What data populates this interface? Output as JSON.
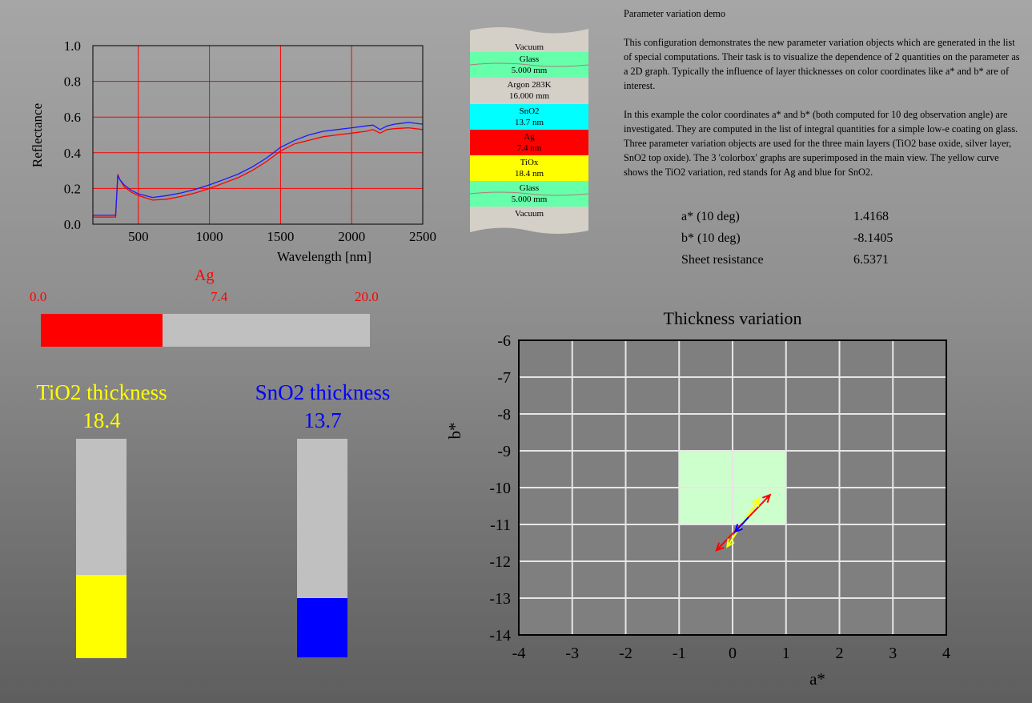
{
  "colors": {
    "reflectance_red": "#ff0000",
    "reflectance_blue": "#1a1aff",
    "grid_red": "#ff0000",
    "ag": "#ff0000",
    "tio2": "#ffff00",
    "sno2": "#0000ff",
    "glass": "#66ffaa",
    "sno2_layer": "#00ffff",
    "tiox_layer": "#ffff00",
    "plot_region": "#ccffcc"
  },
  "reflectance_chart": {
    "ylabel": "Reflectance",
    "xlabel": "Wavelength [nm]",
    "x_ticks": [
      "500",
      "1000",
      "1500",
      "2000",
      "2500"
    ],
    "y_ticks": [
      "0.0",
      "0.2",
      "0.4",
      "0.6",
      "0.8",
      "1.0"
    ]
  },
  "layer_stack": [
    {
      "name": "Vacuum",
      "thickness": "",
      "color": "#d4d0c8"
    },
    {
      "name": "Glass",
      "thickness": "5.000 mm",
      "color": "#66ffaa"
    },
    {
      "name": "Argon 283K",
      "thickness": "16.000 mm",
      "color": "#d4d0c8"
    },
    {
      "name": "SnO2",
      "thickness": "13.7 nm",
      "color": "#00ffff"
    },
    {
      "name": "Ag",
      "thickness": "7.4 nm",
      "color": "#ff0000"
    },
    {
      "name": "TiOx",
      "thickness": "18.4 nm",
      "color": "#ffff00"
    },
    {
      "name": "Glass",
      "thickness": "5.000 mm",
      "color": "#66ffaa"
    },
    {
      "name": "Vacuum",
      "thickness": "",
      "color": "#d4d0c8"
    }
  ],
  "description": {
    "title": "Parameter variation demo",
    "p1": "This configuration demonstrates the new parameter variation objects which are generated in the list of special computations. Their task is to visualize the dependence of 2 quantities on the parameter as a 2D graph. Typically the influence of layer thicknesses on color coordinates like a* and b* are of interest.",
    "p2": "In this example the color coordinates a* and b* (both computed for 10 deg observation angle) are investigated. They are computed in the list of integral quantities for a simple low-e coating on glass. Three parameter variation objects are used for the three main layers (TiO2 base oxide, silver layer, SnO2 top oxide). The 3 'colorbox' graphs are superimposed in the main view. The yellow curve shows the TiO2 variation, red stands for Ag and blue for SnO2."
  },
  "results": [
    {
      "name": "a* (10 deg)",
      "value": "1.4168"
    },
    {
      "name": "b* (10 deg)",
      "value": "-8.1405"
    },
    {
      "name": "Sheet resistance",
      "value": "6.5371"
    }
  ],
  "ag_slider": {
    "title": "Ag",
    "min_label": "0.0",
    "value_label": "7.4",
    "max_label": "20.0",
    "value": 7.4,
    "min": 0,
    "max": 20
  },
  "tio2": {
    "title": "TiO2 thickness",
    "value_label": "18.4",
    "fraction": 0.38
  },
  "sno2": {
    "title": "SnO2 thickness",
    "value_label": "13.7",
    "fraction": 0.27
  },
  "chart_data": [
    {
      "type": "line",
      "xlabel": "Wavelength [nm]",
      "ylabel": "Reflectance",
      "xlim": [
        180,
        2500
      ],
      "ylim": [
        0,
        1
      ],
      "grid": true,
      "series": [
        {
          "color": "#1a1aff",
          "x": [
            180,
            300,
            340,
            355,
            370,
            400,
            450,
            500,
            600,
            700,
            800,
            900,
            1000,
            1100,
            1200,
            1300,
            1400,
            1500,
            1600,
            1700,
            1800,
            1900,
            2000,
            2100,
            2150,
            2200,
            2250,
            2300,
            2400,
            2500
          ],
          "y": [
            0.05,
            0.05,
            0.05,
            0.27,
            0.25,
            0.22,
            0.19,
            0.17,
            0.15,
            0.16,
            0.175,
            0.195,
            0.22,
            0.25,
            0.28,
            0.32,
            0.37,
            0.43,
            0.47,
            0.5,
            0.52,
            0.53,
            0.54,
            0.55,
            0.555,
            0.53,
            0.55,
            0.56,
            0.57,
            0.56
          ]
        },
        {
          "color": "#ff0000",
          "x": [
            180,
            300,
            340,
            355,
            370,
            400,
            450,
            500,
            600,
            700,
            800,
            900,
            1000,
            1100,
            1200,
            1300,
            1400,
            1500,
            1600,
            1700,
            1800,
            1900,
            2000,
            2100,
            2150,
            2200,
            2250,
            2300,
            2400,
            2500
          ],
          "y": [
            0.04,
            0.04,
            0.04,
            0.28,
            0.25,
            0.21,
            0.18,
            0.16,
            0.135,
            0.14,
            0.155,
            0.175,
            0.2,
            0.23,
            0.26,
            0.3,
            0.35,
            0.41,
            0.45,
            0.47,
            0.49,
            0.5,
            0.51,
            0.52,
            0.53,
            0.51,
            0.53,
            0.535,
            0.54,
            0.53
          ]
        }
      ]
    },
    {
      "type": "scatter",
      "title": "Thickness variation",
      "xlabel": "a*",
      "ylabel": "b*",
      "xlim": [
        -4,
        4
      ],
      "ylim": [
        -14,
        -6
      ],
      "grid": true,
      "x_ticks": [
        "-4",
        "-3",
        "-2",
        "-1",
        "0",
        "1",
        "2",
        "3",
        "4"
      ],
      "y_ticks": [
        "-6",
        "-7",
        "-8",
        "-9",
        "-10",
        "-11",
        "-12",
        "-13",
        "-14"
      ],
      "region": {
        "x": [
          -1,
          1
        ],
        "y": [
          -11,
          -9
        ],
        "color": "#ccffcc"
      },
      "series": [
        {
          "color": "#ff0000",
          "x": [
            -0.3,
            0.7
          ],
          "y": [
            -11.7,
            -10.2
          ]
        },
        {
          "color": "#ffff00",
          "x": [
            -0.1,
            0.5
          ],
          "y": [
            -11.6,
            -10.3
          ]
        },
        {
          "color": "#0000ff",
          "x": [
            0.3,
            0.05
          ],
          "y": [
            -10.8,
            -11.2
          ]
        }
      ]
    }
  ]
}
